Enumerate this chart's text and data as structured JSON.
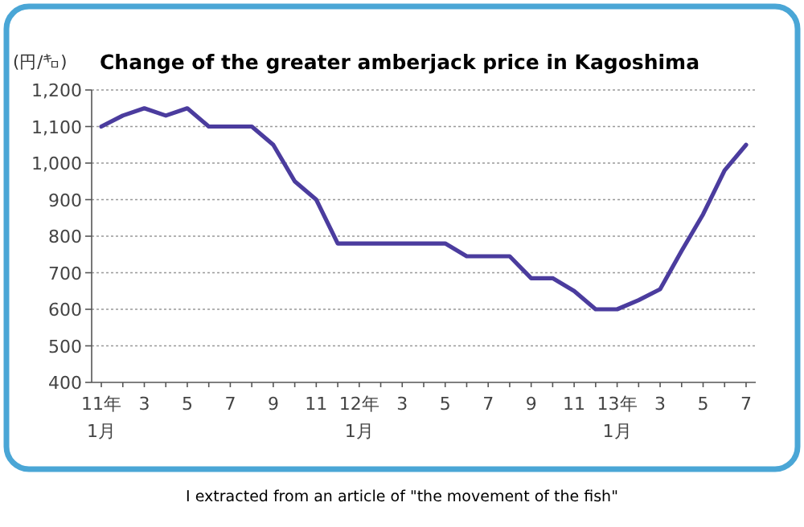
{
  "chart_data": {
    "type": "line",
    "title": "Change of the greater amberjack price in Kagoshima",
    "ylabel": "(円/㌔)",
    "categories": [
      "11年\n1月",
      null,
      "3",
      null,
      "5",
      null,
      "7",
      null,
      "9",
      null,
      "11",
      null,
      "12年\n1月",
      null,
      "3",
      null,
      "5",
      null,
      "7",
      null,
      "9",
      null,
      "11",
      null,
      "13年\n1月",
      null,
      "3",
      null,
      "5",
      null,
      "7"
    ],
    "values": [
      1100,
      1130,
      1150,
      1130,
      1150,
      1100,
      1100,
      1100,
      1050,
      950,
      900,
      780,
      780,
      780,
      780,
      780,
      780,
      745,
      745,
      745,
      685,
      685,
      650,
      600,
      600,
      625,
      655,
      760,
      860,
      980,
      1050
    ],
    "color": "#4b3c9e",
    "ylim": [
      400,
      1200
    ],
    "yticks": [
      400,
      500,
      600,
      700,
      800,
      900,
      {
        "value": 1000,
        "label": "1,000"
      },
      {
        "value": 1100,
        "label": "1,100"
      },
      {
        "value": 1200,
        "label": "1,200"
      }
    ],
    "grid": "y",
    "annotations": [
      "I extracted from an article of \"the movement of the fish\""
    ]
  }
}
